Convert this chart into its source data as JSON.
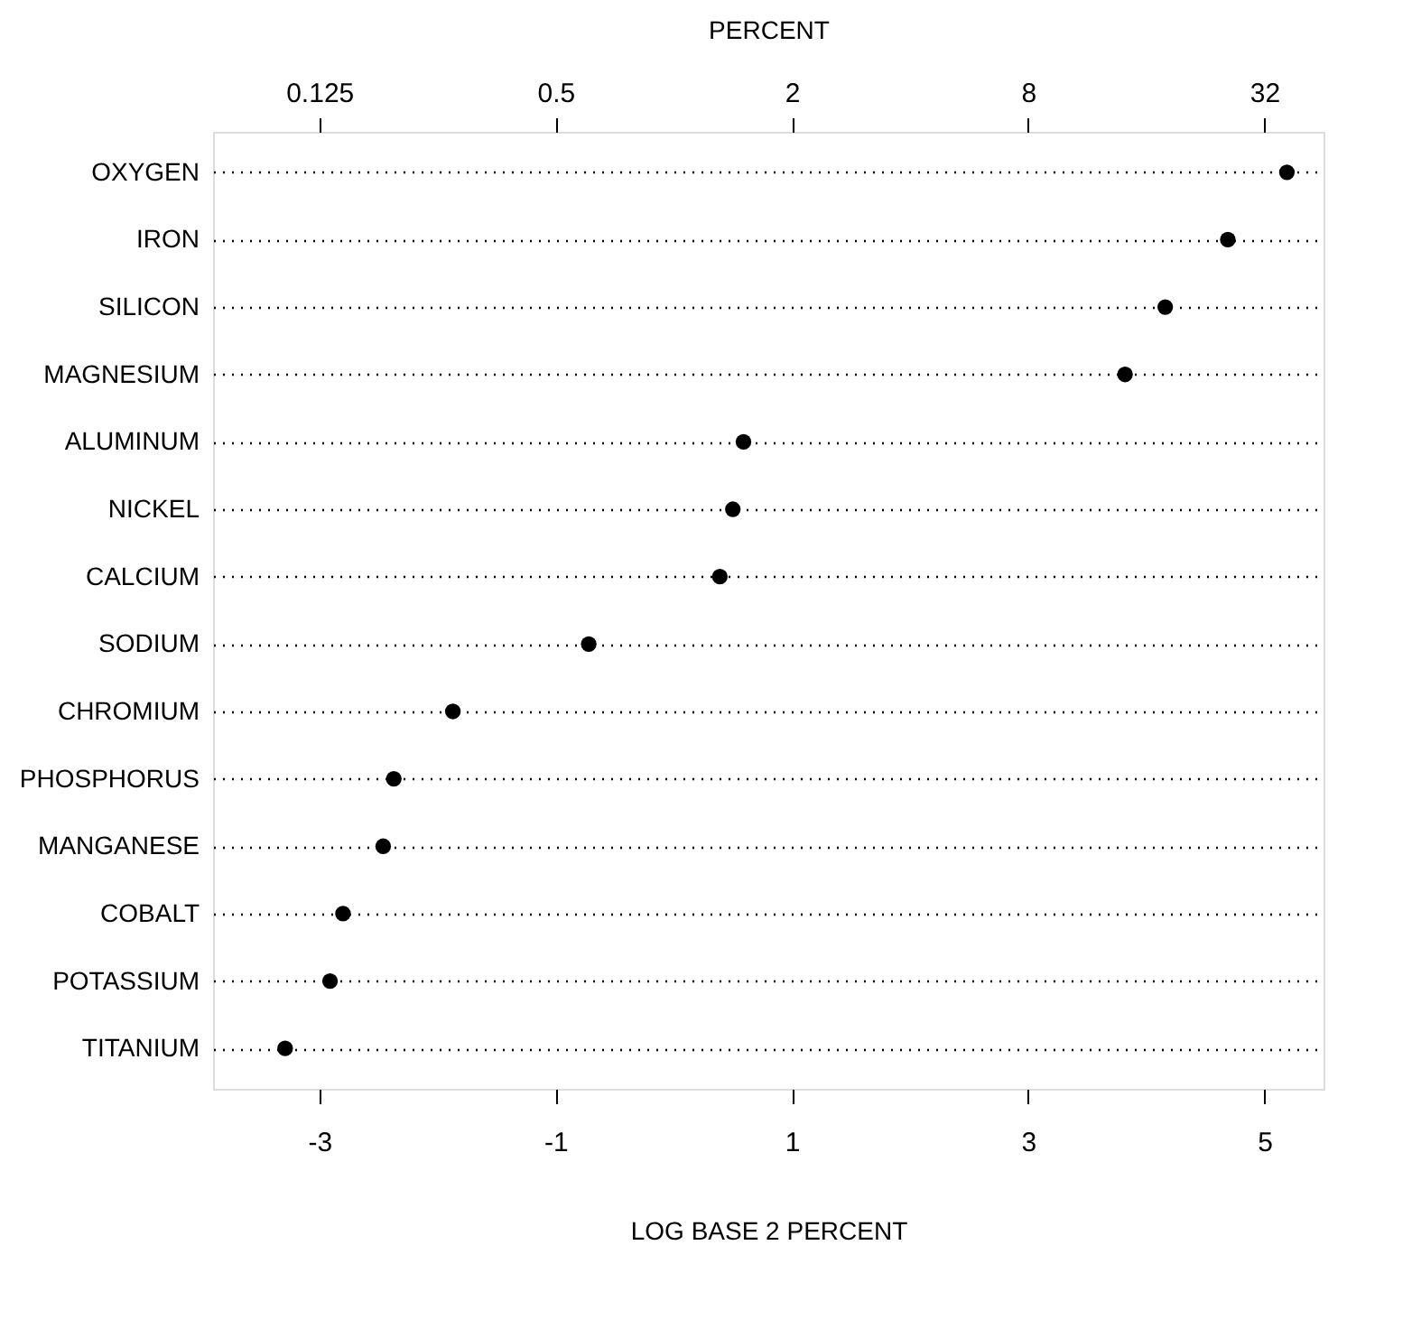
{
  "chart_data": {
    "type": "scatter",
    "orientation": "horizontal",
    "xlabel": "LOG BASE 2 PERCENT",
    "x2label": "PERCENT",
    "categories": [
      "OXYGEN",
      "IRON",
      "SILICON",
      "MAGNESIUM",
      "ALUMINUM",
      "NICKEL",
      "CALCIUM",
      "SODIUM",
      "CHROMIUM",
      "PHOSPHORUS",
      "MANGANESE",
      "COBALT",
      "POTASSIUM",
      "TITANIUM"
    ],
    "values": [
      5.19,
      4.69,
      4.16,
      3.82,
      0.59,
      0.5,
      0.39,
      -0.72,
      -1.87,
      -2.37,
      -2.46,
      -2.8,
      -2.91,
      -3.29
    ],
    "color": "#000000",
    "xlim": [
      -3.9,
      5.5
    ],
    "xticks": [
      -3,
      -1,
      1,
      3,
      5
    ],
    "x2lim": [
      0.067,
      45.3
    ],
    "log": "x2",
    "x2ticks": [
      0.125,
      0.5,
      2,
      8,
      32
    ],
    "grid": "y",
    "line_style": "dotted",
    "marker": "circle"
  }
}
